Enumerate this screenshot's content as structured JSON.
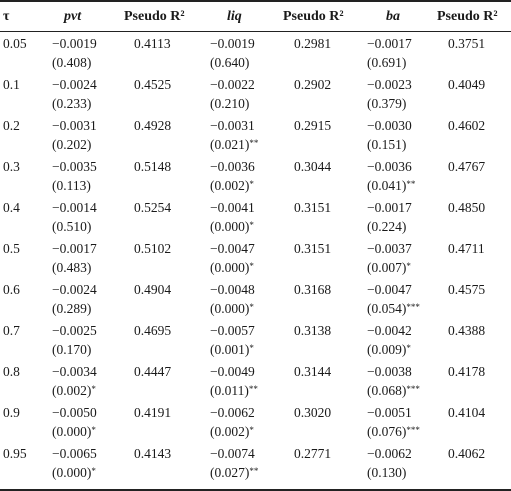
{
  "headers": {
    "tau": "τ",
    "pvt": "pvt",
    "r2a": "Pseudo R²",
    "liq": "liq",
    "r2b": "Pseudo R²",
    "ba": "ba",
    "r2c": "Pseudo R²"
  },
  "rows": [
    {
      "tau": "0.05",
      "pvt": "−0.0019",
      "pvt_p": "(0.408)",
      "pvt_sig": "",
      "r2a": "0.4113",
      "liq": "−0.0019",
      "liq_p": "(0.640)",
      "liq_sig": "",
      "r2b": "0.2981",
      "ba": "−0.0017",
      "ba_p": "(0.691)",
      "ba_sig": "",
      "r2c": "0.3751"
    },
    {
      "tau": "0.1",
      "pvt": "−0.0024",
      "pvt_p": "(0.233)",
      "pvt_sig": "",
      "r2a": "0.4525",
      "liq": "−0.0022",
      "liq_p": "(0.210)",
      "liq_sig": "",
      "r2b": "0.2902",
      "ba": "−0.0023",
      "ba_p": "(0.379)",
      "ba_sig": "",
      "r2c": "0.4049"
    },
    {
      "tau": "0.2",
      "pvt": "−0.0031",
      "pvt_p": "(0.202)",
      "pvt_sig": "",
      "r2a": "0.4928",
      "liq": "−0.0031",
      "liq_p": "(0.021)",
      "liq_sig": "**",
      "r2b": "0.2915",
      "ba": "−0.0030",
      "ba_p": "(0.151)",
      "ba_sig": "",
      "r2c": "0.4602"
    },
    {
      "tau": "0.3",
      "pvt": "−0.0035",
      "pvt_p": "(0.113)",
      "pvt_sig": "",
      "r2a": "0.5148",
      "liq": "−0.0036",
      "liq_p": "(0.002)",
      "liq_sig": "*",
      "r2b": "0.3044",
      "ba": "−0.0036",
      "ba_p": "(0.041)",
      "ba_sig": "**",
      "r2c": "0.4767"
    },
    {
      "tau": "0.4",
      "pvt": "−0.0014",
      "pvt_p": "(0.510)",
      "pvt_sig": "",
      "r2a": "0.5254",
      "liq": "−0.0041",
      "liq_p": "(0.000)",
      "liq_sig": "*",
      "r2b": "0.3151",
      "ba": "−0.0017",
      "ba_p": "(0.224)",
      "ba_sig": "",
      "r2c": "0.4850"
    },
    {
      "tau": "0.5",
      "pvt": "−0.0017",
      "pvt_p": "(0.483)",
      "pvt_sig": "",
      "r2a": "0.5102",
      "liq": "−0.0047",
      "liq_p": "(0.000)",
      "liq_sig": "*",
      "r2b": "0.3151",
      "ba": "−0.0037",
      "ba_p": "(0.007)",
      "ba_sig": "*",
      "r2c": "0.4711"
    },
    {
      "tau": "0.6",
      "pvt": "−0.0024",
      "pvt_p": "(0.289)",
      "pvt_sig": "",
      "r2a": "0.4904",
      "liq": "−0.0048",
      "liq_p": "(0.000)",
      "liq_sig": "*",
      "r2b": "0.3168",
      "ba": "−0.0047",
      "ba_p": "(0.054)",
      "ba_sig": "***",
      "r2c": "0.4575"
    },
    {
      "tau": "0.7",
      "pvt": "−0.0025",
      "pvt_p": "(0.170)",
      "pvt_sig": "",
      "r2a": "0.4695",
      "liq": "−0.0057",
      "liq_p": "(0.001)",
      "liq_sig": "*",
      "r2b": "0.3138",
      "ba": "−0.0042",
      "ba_p": "(0.009)",
      "ba_sig": "*",
      "r2c": "0.4388"
    },
    {
      "tau": "0.8",
      "pvt": "−0.0034",
      "pvt_p": "(0.002)",
      "pvt_sig": "*",
      "r2a": "0.4447",
      "liq": "−0.0049",
      "liq_p": "(0.011)",
      "liq_sig": "**",
      "r2b": "0.3144",
      "ba": "−0.0038",
      "ba_p": "(0.068)",
      "ba_sig": "***",
      "r2c": "0.4178"
    },
    {
      "tau": "0.9",
      "pvt": "−0.0050",
      "pvt_p": "(0.000)",
      "pvt_sig": "*",
      "r2a": "0.4191",
      "liq": "−0.0062",
      "liq_p": "(0.002)",
      "liq_sig": "*",
      "r2b": "0.3020",
      "ba": "−0.0051",
      "ba_p": "(0.076)",
      "ba_sig": "***",
      "r2c": "0.4104"
    },
    {
      "tau": "0.95",
      "pvt": "−0.0065",
      "pvt_p": "(0.000)",
      "pvt_sig": "*",
      "r2a": "0.4143",
      "liq": "−0.0074",
      "liq_p": "(0.027)",
      "liq_sig": "**",
      "r2b": "0.2771",
      "ba": "−0.0062",
      "ba_p": "(0.130)",
      "ba_sig": "",
      "r2c": "0.4062"
    }
  ]
}
